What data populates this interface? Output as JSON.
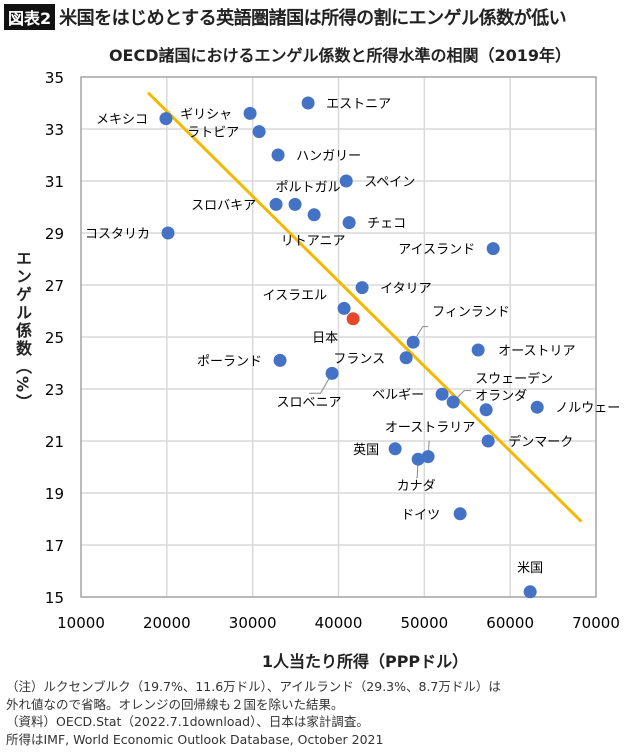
{
  "header": {
    "badge": "図表2",
    "title": "米国をはじめとする英語圏諸国は所得の割にエンゲル係数が低い"
  },
  "notes": [
    "（注）ルクセンブルク（19.7%、11.6万ドル）、アイルランド（29.3%、8.7万ドル）は",
    "外れ値なので省略。オレンジの回帰線も２国を除いた結果。",
    "（資料）OECD.Stat（2022.7.1download）、日本は家計調査。",
    "所得はIMF, World Economic Outlook Database, October 2021"
  ],
  "chart_data": {
    "type": "scatter",
    "title": "OECD諸国におけるエンゲル係数と所得水準の相関（2019年）",
    "xlabel": "1人当たり所得（PPPドル）",
    "ylabel": "エンゲル係数（%）",
    "xlim": [
      10000,
      70000
    ],
    "ylim": [
      15,
      35
    ],
    "xticks": [
      "10000",
      "20000",
      "30000",
      "40000",
      "50000",
      "60000",
      "70000"
    ],
    "yticks": [
      "15",
      "17",
      "19",
      "21",
      "23",
      "25",
      "27",
      "29",
      "31",
      "33",
      "35"
    ],
    "grid": true,
    "colors": {
      "point": "#4472c4",
      "highlight": "#e8472b",
      "regression": "#f5b800",
      "grid": "#d9d9d9"
    },
    "points": [
      {
        "label": "メキシコ",
        "x": 19900,
        "y": 33.4
      },
      {
        "label": "ギリシャ",
        "x": 29700,
        "y": 33.6
      },
      {
        "label": "ラトビア",
        "x": 30750,
        "y": 32.9
      },
      {
        "label": "ハンガリー",
        "x": 32960,
        "y": 32.0
      },
      {
        "label": "エストニア",
        "x": 36460,
        "y": 34.0
      },
      {
        "label": "スペイン",
        "x": 40900,
        "y": 31.0
      },
      {
        "label": "ポルトガル",
        "x": 34940,
        "y": 30.1
      },
      {
        "label": "スロバキア",
        "x": 32730,
        "y": 30.1
      },
      {
        "label": "リトアニア",
        "x": 37160,
        "y": 29.7
      },
      {
        "label": "チェコ",
        "x": 41240,
        "y": 29.4
      },
      {
        "label": "コスタリカ",
        "x": 20140,
        "y": 29.0
      },
      {
        "label": "アイスランド",
        "x": 58020,
        "y": 28.4
      },
      {
        "label": "イタリア",
        "x": 42750,
        "y": 26.9
      },
      {
        "label": "イスラエル",
        "x": 40650,
        "y": 26.1
      },
      {
        "label": "日本",
        "x": 41700,
        "y": 25.7,
        "highlight": true
      },
      {
        "label": "フィンランド",
        "x": 48700,
        "y": 24.8
      },
      {
        "label": "フランス",
        "x": 47880,
        "y": 24.2
      },
      {
        "label": "ポーランド",
        "x": 33190,
        "y": 24.1
      },
      {
        "label": "スロベニア",
        "x": 39250,
        "y": 23.6
      },
      {
        "label": "オーストリア",
        "x": 56270,
        "y": 24.5
      },
      {
        "label": "ベルギー",
        "x": 52070,
        "y": 22.8
      },
      {
        "label": "スウェーデン",
        "x": 53360,
        "y": 22.5
      },
      {
        "label": "オランダ",
        "x": 57200,
        "y": 22.2
      },
      {
        "label": "ノルウェー",
        "x": 63150,
        "y": 22.3
      },
      {
        "label": "オーストラリア",
        "x": 50440,
        "y": 20.4
      },
      {
        "label": "カナダ",
        "x": 49280,
        "y": 20.3
      },
      {
        "label": "英国",
        "x": 46600,
        "y": 20.7
      },
      {
        "label": "デンマーク",
        "x": 57440,
        "y": 21.0
      },
      {
        "label": "ドイツ",
        "x": 54170,
        "y": 18.2
      },
      {
        "label": "米国",
        "x": 62330,
        "y": 15.2
      }
    ],
    "regression_line": {
      "x": [
        17800,
        68300
      ],
      "y": [
        34.4,
        17.9
      ]
    }
  }
}
